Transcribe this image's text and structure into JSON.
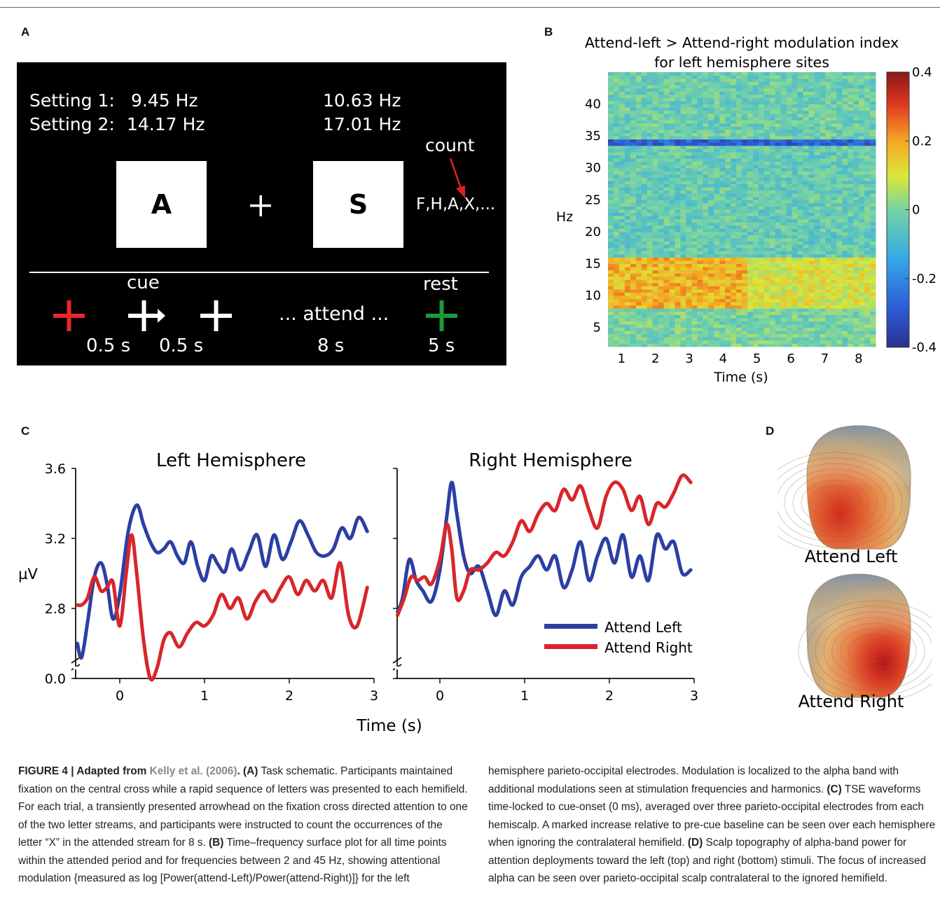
{
  "panels": {
    "a": "A",
    "b": "B",
    "c": "C",
    "d": "D"
  },
  "panel_a": {
    "setting1_label": "Setting 1:",
    "setting1_left": "9.45 Hz",
    "setting1_right": "10.63 Hz",
    "setting2_label": "Setting 2:",
    "setting2_left": "14.17 Hz",
    "setting2_right": "17.01 Hz",
    "count_label": "count",
    "letter_left": "A",
    "letter_right": "S",
    "letter_stream": "F,H,A,X,...",
    "cue_label": "cue",
    "rest_label": "rest",
    "attend_label": "... attend ...",
    "dur_1": "0.5 s",
    "dur_2": "0.5 s",
    "dur_3": "8 s",
    "dur_4": "5 s",
    "colors": {
      "cue_red": "#e8262b",
      "rest_green": "#1a9a3a",
      "arrow_red": "#e02020"
    }
  },
  "panel_b": {
    "title_line1": "Attend-left > Attend-right modulation index",
    "title_line2": "for left hemisphere sites",
    "ylabel": "Hz",
    "xlabel": "Time (s)",
    "yticks": [
      "5",
      "10",
      "15",
      "20",
      "25",
      "30",
      "35",
      "40"
    ],
    "xticks": [
      "1",
      "2",
      "3",
      "4",
      "5",
      "6",
      "7",
      "8"
    ],
    "colorbar_ticks": [
      "0.4",
      "0.2",
      "0",
      "-0.2",
      "-0.4"
    ]
  },
  "chart_data": [
    {
      "type": "heatmap",
      "title": "Attend-left > Attend-right modulation index for left hemisphere sites",
      "xlabel": "Time (s)",
      "ylabel": "Hz",
      "xlim": [
        0.6,
        8.5
      ],
      "ylim": [
        2,
        45
      ],
      "clim": [
        -0.4,
        0.4
      ],
      "bands": [
        {
          "range_hz": [
            2,
            8
          ],
          "value": 0.0
        },
        {
          "range_hz": [
            8,
            16
          ],
          "value": 0.12
        },
        {
          "range_hz": [
            16,
            33
          ],
          "value": -0.03
        },
        {
          "range_hz": [
            33.5,
            34.5
          ],
          "value": -0.28
        },
        {
          "range_hz": [
            35,
            45
          ],
          "value": -0.02
        }
      ]
    },
    {
      "type": "line",
      "title": "Left Hemisphere",
      "xlabel": "Time (s)",
      "ylabel": "µV",
      "xlim": [
        -0.5,
        3
      ],
      "yticks": [
        "0.0",
        "2.8",
        "3.2",
        "3.6"
      ],
      "xticks": [
        "0",
        "1",
        "2",
        "3"
      ],
      "series": [
        {
          "name": "Attend Left",
          "color": "#2b3fa3",
          "x": [
            -0.5,
            -0.45,
            -0.38,
            -0.3,
            -0.22,
            -0.15,
            -0.08,
            0.0,
            0.1,
            0.2,
            0.28,
            0.36,
            0.44,
            0.52,
            0.6,
            0.68,
            0.76,
            0.84,
            0.92,
            1.0,
            1.08,
            1.16,
            1.24,
            1.32,
            1.42,
            1.52,
            1.62,
            1.72,
            1.82,
            1.92,
            2.02,
            2.12,
            2.22,
            2.32,
            2.42,
            2.52,
            2.62,
            2.72,
            2.82,
            2.92
          ],
          "y": [
            2.6,
            2.52,
            2.72,
            2.98,
            3.06,
            2.94,
            2.74,
            2.88,
            3.24,
            3.39,
            3.28,
            3.18,
            3.12,
            3.14,
            3.18,
            3.1,
            3.06,
            3.18,
            3.04,
            2.96,
            3.1,
            3.05,
            3.01,
            3.14,
            3.02,
            3.12,
            3.22,
            3.04,
            3.22,
            3.08,
            3.18,
            3.3,
            3.22,
            3.12,
            3.1,
            3.14,
            3.26,
            3.2,
            3.32,
            3.24
          ]
        },
        {
          "name": "Attend Right",
          "color": "#d8262b",
          "x": [
            -0.5,
            -0.45,
            -0.38,
            -0.3,
            -0.22,
            -0.15,
            -0.08,
            0.0,
            0.08,
            0.14,
            0.2,
            0.28,
            0.36,
            0.44,
            0.52,
            0.6,
            0.7,
            0.8,
            0.9,
            1.0,
            1.1,
            1.2,
            1.3,
            1.4,
            1.5,
            1.6,
            1.7,
            1.8,
            1.9,
            2.0,
            2.1,
            2.2,
            2.3,
            2.4,
            2.5,
            2.6,
            2.7,
            2.8,
            2.92
          ],
          "y": [
            2.82,
            2.82,
            2.86,
            2.98,
            2.9,
            2.92,
            2.95,
            2.7,
            3.02,
            3.22,
            3.0,
            2.62,
            2.4,
            2.46,
            2.62,
            2.66,
            2.58,
            2.66,
            2.72,
            2.7,
            2.76,
            2.88,
            2.8,
            2.86,
            2.74,
            2.84,
            2.9,
            2.84,
            2.92,
            2.98,
            2.88,
            2.96,
            2.9,
            2.96,
            2.86,
            3.06,
            2.76,
            2.7,
            2.92
          ]
        }
      ]
    },
    {
      "type": "line",
      "title": "Right Hemisphere",
      "xlabel": "Time (s)",
      "ylabel": "µV",
      "xlim": [
        -0.5,
        3
      ],
      "xticks": [
        "0",
        "1",
        "2",
        "3"
      ],
      "series": [
        {
          "name": "Attend Left",
          "color": "#2b3fa3",
          "x": [
            -0.5,
            -0.44,
            -0.36,
            -0.28,
            -0.2,
            -0.1,
            0.0,
            0.08,
            0.14,
            0.2,
            0.28,
            0.36,
            0.46,
            0.56,
            0.66,
            0.76,
            0.86,
            0.96,
            1.06,
            1.16,
            1.26,
            1.36,
            1.46,
            1.56,
            1.66,
            1.76,
            1.86,
            1.96,
            2.06,
            2.16,
            2.26,
            2.36,
            2.46,
            2.56,
            2.66,
            2.76,
            2.86,
            2.96
          ],
          "y": [
            2.78,
            2.86,
            3.08,
            2.96,
            2.9,
            2.84,
            3.02,
            3.32,
            3.52,
            3.34,
            3.1,
            3.0,
            3.04,
            2.9,
            2.76,
            2.9,
            2.82,
            2.98,
            3.04,
            3.1,
            3.02,
            3.1,
            2.92,
            3.02,
            3.18,
            2.96,
            3.1,
            3.2,
            3.06,
            3.22,
            2.98,
            3.1,
            2.96,
            3.22,
            3.14,
            3.18,
            3.0,
            3.02
          ]
        },
        {
          "name": "Attend Right",
          "color": "#d8262b",
          "x": [
            -0.5,
            -0.42,
            -0.34,
            -0.26,
            -0.18,
            -0.1,
            0.0,
            0.08,
            0.14,
            0.2,
            0.28,
            0.36,
            0.46,
            0.56,
            0.66,
            0.76,
            0.86,
            0.96,
            1.06,
            1.16,
            1.26,
            1.36,
            1.46,
            1.56,
            1.66,
            1.76,
            1.86,
            1.96,
            2.06,
            2.16,
            2.26,
            2.36,
            2.46,
            2.56,
            2.66,
            2.76,
            2.86,
            2.96
          ],
          "y": [
            2.76,
            2.86,
            2.98,
            2.96,
            2.98,
            2.94,
            3.08,
            3.28,
            3.14,
            2.86,
            2.9,
            3.02,
            3.02,
            3.06,
            3.12,
            3.1,
            3.18,
            3.3,
            3.24,
            3.34,
            3.4,
            3.36,
            3.48,
            3.42,
            3.5,
            3.36,
            3.26,
            3.44,
            3.52,
            3.48,
            3.36,
            3.44,
            3.28,
            3.4,
            3.38,
            3.46,
            3.56,
            3.52
          ]
        }
      ],
      "legend": "bottom-right"
    }
  ],
  "panel_c": {
    "left_title": "Left Hemisphere",
    "right_title": "Right Hemisphere",
    "ylabel": "µV",
    "xlabel": "Time (s)",
    "legend_left": "Attend Left",
    "legend_right": "Attend Right"
  },
  "panel_d": {
    "label_top": "Attend Left",
    "label_bottom": "Attend Right"
  },
  "caption": {
    "fig": "FIGURE 4 | Adapted from ",
    "ref": "Kelly et al. (2006)",
    "a_label": ". (A)",
    "a_text": " Task schematic. Participants maintained fixation on the central cross while a rapid sequence of letters was presented to each hemifield. For each trial, a transiently presented arrowhead on the fixation cross directed attention to one of the two letter streams, and participants were instructed to count the occurrences of the letter “X” in the attended stream for 8 s. ",
    "b_label": "(B)",
    "b_text": " Time–frequency surface plot for all time points within the attended period and for frequencies between 2 and 45 Hz, showing attentional modulation {measured as log [Power(attend-Left)/Power(attend-Right)]} for the left",
    "right_start": "hemisphere parieto-occipital electrodes. Modulation is localized to the alpha band with additional modulations seen at stimulation frequencies and harmonics. ",
    "c_label": "(C)",
    "c_text": " TSE waveforms time-locked to cue-onset (0 ms), averaged over three parieto-occipital electrodes from each hemiscalp. A marked increase relative to pre-cue baseline can be seen over each hemisphere when ignoring the contralateral hemifield. ",
    "d_label": "(D)",
    "d_text": " Scalp topography of alpha-band power for attention deployments toward the left (top) and right (bottom) stimuli. The focus of increased alpha can be seen over parieto-occipital scalp contralateral to the ignored hemifield."
  }
}
